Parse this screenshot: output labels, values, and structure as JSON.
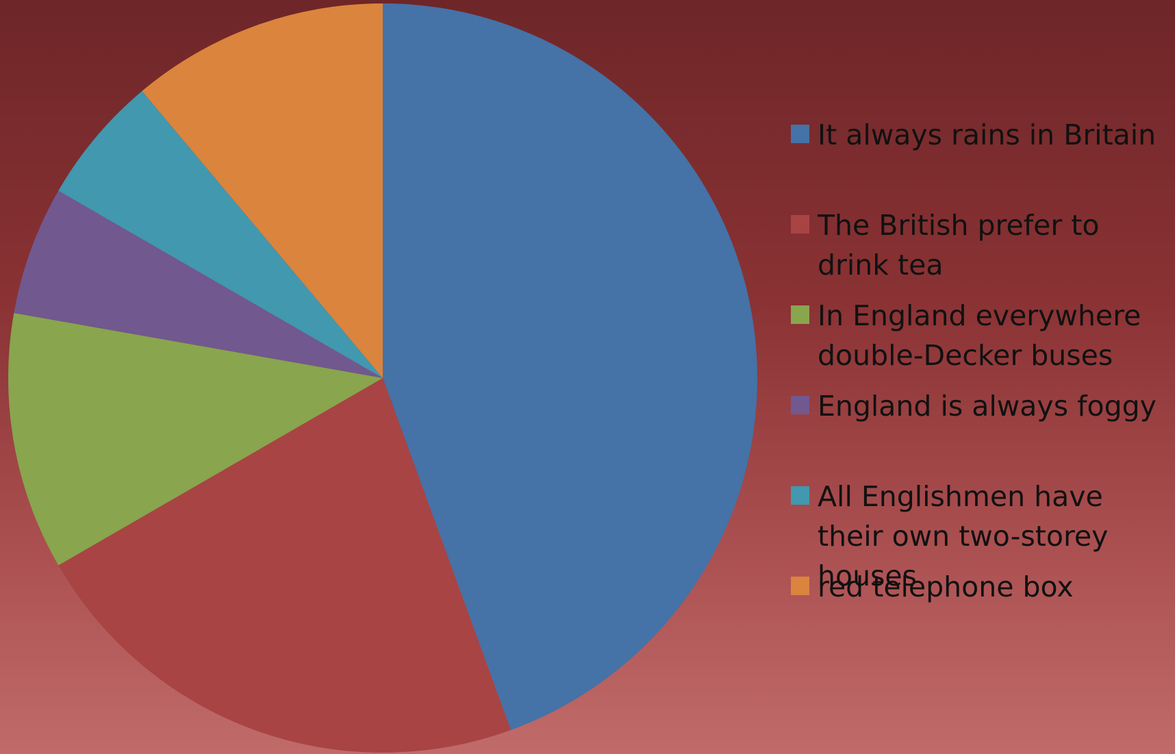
{
  "chart_data": {
    "type": "pie",
    "slices": [
      {
        "label": "It always rains in Britain",
        "value": 44,
        "color": "#4572a7"
      },
      {
        "label": "The British prefer to drink tea",
        "value": 22,
        "color": "#a84443"
      },
      {
        "label": "In England everywhere double-Decker buses",
        "value": 11,
        "color": "#89a54e"
      },
      {
        "label": "England is always foggy",
        "value": 5.5,
        "color": "#71588f"
      },
      {
        "label": "All Englishmen have their own two-storey houses",
        "value": 5.5,
        "color": "#4198af"
      },
      {
        "label": "red telephone box",
        "value": 11,
        "color": "#db843d"
      }
    ],
    "start_angle": "12 o'clock",
    "direction": "clockwise",
    "legend_position": "right"
  }
}
